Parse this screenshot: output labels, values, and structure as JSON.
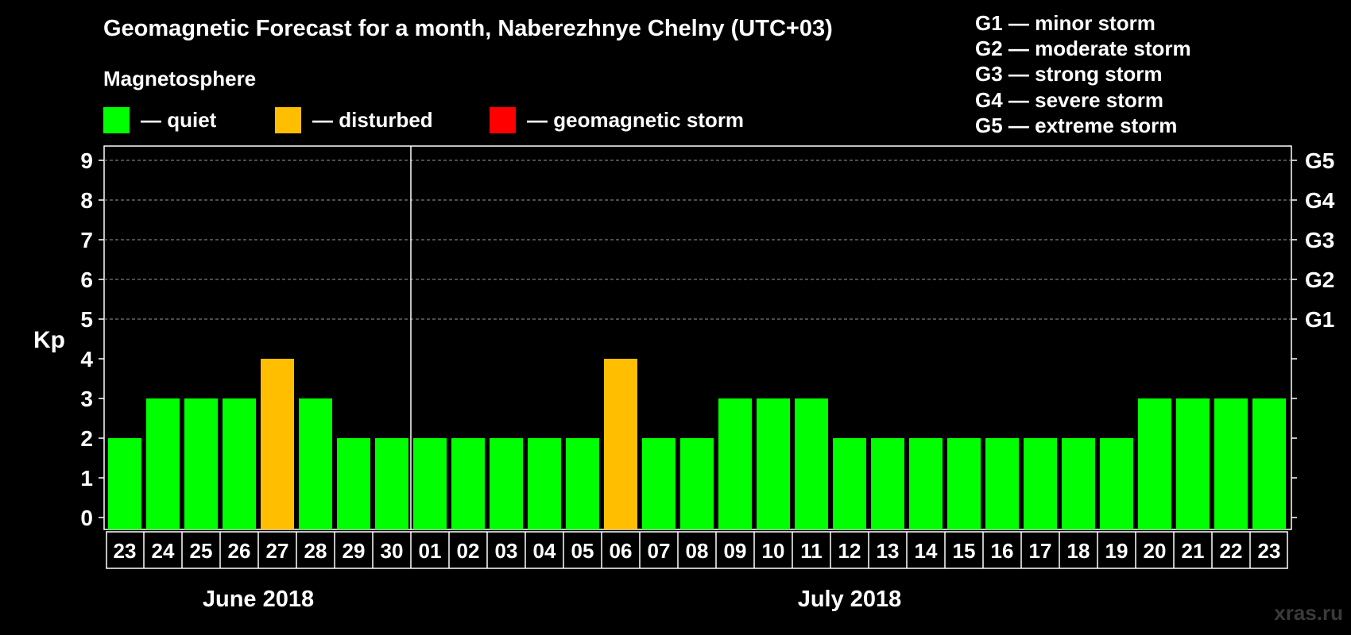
{
  "title": "Geomagnetic Forecast for a month, Naberezhnye Chelny (UTC+03)",
  "magnetosphere": {
    "title": "Magnetosphere",
    "legend": [
      {
        "label": "— quiet",
        "color": "#00ff00"
      },
      {
        "label": "— disturbed",
        "color": "#ffbf00"
      },
      {
        "label": "— geomagnetic storm",
        "color": "#ff0000"
      }
    ]
  },
  "storm_levels": [
    "G1 — minor storm",
    "G2 — moderate storm",
    "G3 — strong storm",
    "G4 — severe storm",
    "G5 — extreme storm"
  ],
  "watermark": "xras.ru",
  "chart_data": {
    "type": "bar",
    "title": "Geomagnetic Forecast for a month, Naberezhnye Chelny (UTC+03)",
    "ylabel": "Kp",
    "xlabel": "",
    "ylim": [
      0,
      9
    ],
    "yticks": [
      "0",
      "1",
      "2",
      "3",
      "4",
      "5",
      "6",
      "7",
      "8",
      "9"
    ],
    "right_axis_labels": [
      {
        "value": 5,
        "label": "G1"
      },
      {
        "value": 6,
        "label": "G2"
      },
      {
        "value": 7,
        "label": "G3"
      },
      {
        "value": 8,
        "label": "G4"
      },
      {
        "value": 9,
        "label": "G5"
      }
    ],
    "categories": [
      "23",
      "24",
      "25",
      "26",
      "27",
      "28",
      "29",
      "30",
      "01",
      "02",
      "03",
      "04",
      "05",
      "06",
      "07",
      "08",
      "09",
      "10",
      "11",
      "12",
      "13",
      "14",
      "15",
      "16",
      "17",
      "18",
      "19",
      "20",
      "21",
      "22",
      "23"
    ],
    "values": [
      2,
      3,
      3,
      3,
      4,
      3,
      2,
      2,
      2,
      2,
      2,
      2,
      2,
      4,
      2,
      2,
      3,
      3,
      3,
      2,
      2,
      2,
      2,
      2,
      2,
      2,
      2,
      3,
      3,
      3,
      3
    ],
    "status": [
      "quiet",
      "quiet",
      "quiet",
      "quiet",
      "disturbed",
      "quiet",
      "quiet",
      "quiet",
      "quiet",
      "quiet",
      "quiet",
      "quiet",
      "quiet",
      "disturbed",
      "quiet",
      "quiet",
      "quiet",
      "quiet",
      "quiet",
      "quiet",
      "quiet",
      "quiet",
      "quiet",
      "quiet",
      "quiet",
      "quiet",
      "quiet",
      "quiet",
      "quiet",
      "quiet",
      "quiet"
    ],
    "colors": {
      "quiet": "#00ff00",
      "disturbed": "#ffbf00",
      "storm": "#ff0000"
    },
    "month_groups": [
      {
        "label": "June 2018",
        "start": 0,
        "count": 8
      },
      {
        "label": "July 2018",
        "start": 8,
        "count": 23
      }
    ],
    "grid_y": [
      5,
      6,
      7,
      8,
      9
    ]
  }
}
